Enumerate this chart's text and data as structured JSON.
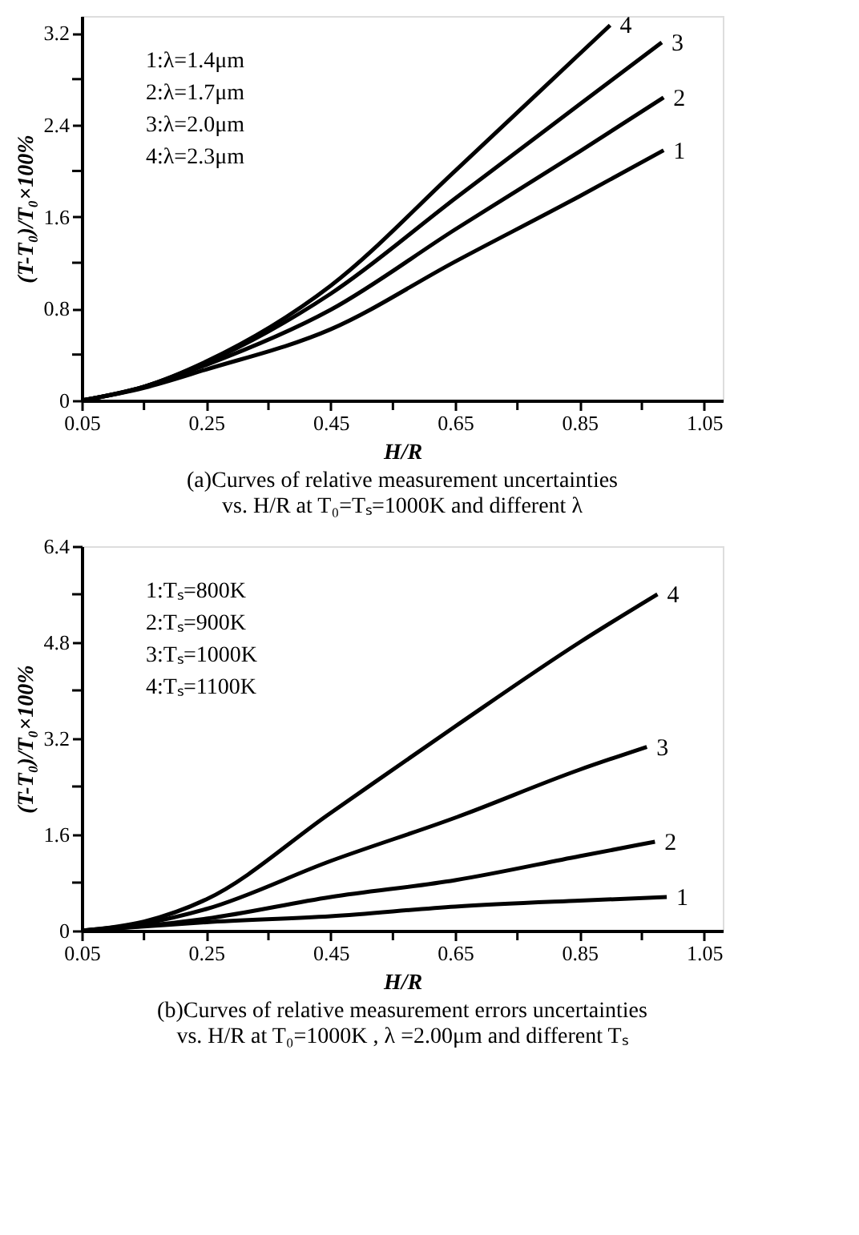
{
  "chart_data": [
    {
      "type": "line",
      "title": "(a)Curves of relative measurement uncertainties\nvs. H/R at T₀=Tₛ=1000K and different λ",
      "xlabel": "H/R",
      "ylabel": "(T-T₀)/T₀×100%",
      "annotations": [
        "1:λ=1.4μm",
        "2:λ=1.7μm",
        "3:λ=2.0μm",
        "4:λ=2.3μm"
      ],
      "xlim": [
        0.05,
        1.08
      ],
      "ylim": [
        0,
        3.35
      ],
      "xticks": [
        0.05,
        {
          "value": 0.15,
          "label": null
        },
        0.25,
        {
          "value": 0.35,
          "label": null
        },
        0.45,
        {
          "value": 0.55,
          "label": null
        },
        0.65,
        {
          "value": 0.75,
          "label": null
        },
        0.85,
        {
          "value": 0.95,
          "label": null
        },
        1.05
      ],
      "yticks": [
        0,
        {
          "value": 0.4,
          "label": null
        },
        0.8,
        {
          "value": 1.2,
          "label": null
        },
        1.6,
        {
          "value": 2.0,
          "label": null
        },
        2.4,
        {
          "value": 2.8,
          "label": null
        },
        3.2
      ],
      "grid": false,
      "legend": false,
      "line_style": "solid",
      "marker": "none",
      "series": [
        {
          "name": "1",
          "color": "#000000",
          "x": [
            0.05,
            0.15,
            0.25,
            0.45,
            0.65,
            0.85,
            0.985
          ],
          "values": [
            0,
            0.11,
            0.27,
            0.62,
            1.21,
            1.78,
            2.18
          ]
        },
        {
          "name": "2",
          "color": "#000000",
          "x": [
            0.05,
            0.15,
            0.25,
            0.45,
            0.65,
            0.85,
            0.985
          ],
          "values": [
            0,
            0.12,
            0.31,
            0.79,
            1.49,
            2.17,
            2.64
          ]
        },
        {
          "name": "3",
          "color": "#000000",
          "x": [
            0.05,
            0.15,
            0.25,
            0.45,
            0.65,
            0.85,
            0.982
          ],
          "values": [
            0,
            0.12,
            0.33,
            0.93,
            1.76,
            2.58,
            3.12
          ]
        },
        {
          "name": "4",
          "color": "#000000",
          "x": [
            0.05,
            0.15,
            0.25,
            0.45,
            0.65,
            0.85,
            0.899
          ],
          "values": [
            0,
            0.12,
            0.34,
            1.0,
            2.0,
            3.02,
            3.27
          ]
        }
      ]
    },
    {
      "type": "line",
      "title": "(b)Curves of relative measurement errors uncertainties\nvs. H/R at T₀=1000K , λ =2.00μm and different Tₛ",
      "xlabel": "H/R",
      "ylabel": "(T-T₀)/T₀×100%",
      "annotations": [
        "1:Tₛ=800K",
        "2:Tₛ=900K",
        "3:Tₛ=1000K",
        "4:Tₛ=1100K"
      ],
      "xlim": [
        0.05,
        1.08
      ],
      "ylim": [
        0,
        6.4
      ],
      "xticks": [
        0.05,
        {
          "value": 0.15,
          "label": null
        },
        0.25,
        {
          "value": 0.35,
          "label": null
        },
        0.45,
        {
          "value": 0.55,
          "label": null
        },
        0.65,
        {
          "value": 0.75,
          "label": null
        },
        0.85,
        {
          "value": 0.95,
          "label": null
        },
        1.05
      ],
      "yticks": [
        0,
        {
          "value": 0.8,
          "label": null
        },
        1.6,
        {
          "value": 2.4,
          "label": null
        },
        3.2,
        {
          "value": 4.0,
          "label": null
        },
        4.8,
        {
          "value": 5.6,
          "label": null
        },
        6.4
      ],
      "grid": false,
      "legend": false,
      "line_style": "solid",
      "marker": "none",
      "series": [
        {
          "name": "1",
          "color": "#000000",
          "x": [
            0.05,
            0.15,
            0.25,
            0.45,
            0.65,
            0.85,
            0.99
          ],
          "values": [
            0,
            0.07,
            0.14,
            0.24,
            0.4,
            0.5,
            0.56
          ]
        },
        {
          "name": "2",
          "color": "#000000",
          "x": [
            0.05,
            0.15,
            0.25,
            0.45,
            0.65,
            0.85,
            0.971
          ],
          "values": [
            0,
            0.08,
            0.2,
            0.56,
            0.84,
            1.24,
            1.48
          ]
        },
        {
          "name": "3",
          "color": "#000000",
          "x": [
            0.05,
            0.15,
            0.25,
            0.45,
            0.65,
            0.85,
            0.958
          ],
          "values": [
            0,
            0.12,
            0.36,
            1.16,
            1.88,
            2.68,
            3.06
          ]
        },
        {
          "name": "4",
          "color": "#000000",
          "x": [
            0.05,
            0.15,
            0.25,
            0.45,
            0.65,
            0.85,
            0.975
          ],
          "values": [
            0,
            0.15,
            0.52,
            1.96,
            3.4,
            4.8,
            5.6
          ]
        }
      ]
    }
  ]
}
